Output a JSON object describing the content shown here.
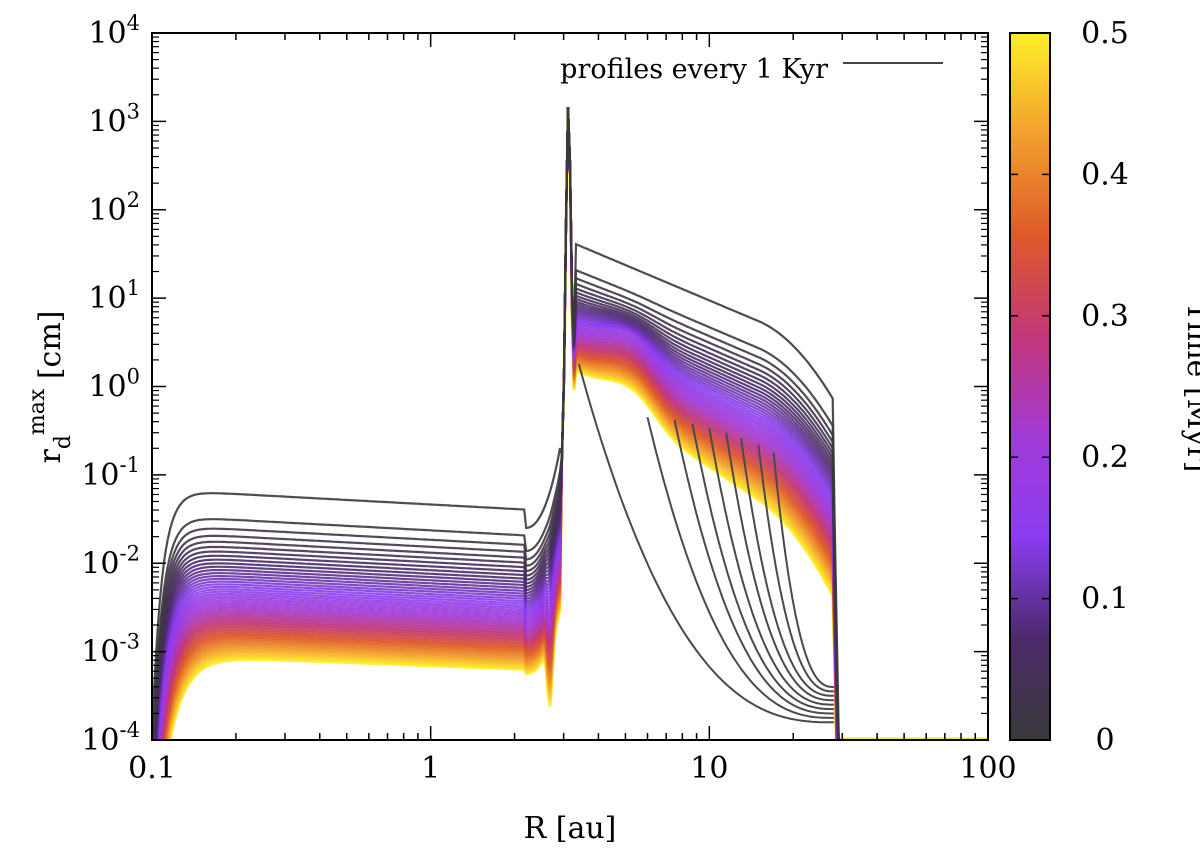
{
  "chart_data": {
    "type": "line",
    "xscale": "log",
    "yscale": "log",
    "xlim": [
      0.1,
      100
    ],
    "ylim": [
      0.0001,
      10000
    ],
    "xlabel": "R [au]",
    "ylabel": {
      "base": "r",
      "sub": "d",
      "sup": "max",
      "unit": " [cm]"
    },
    "x_ticks": [
      {
        "value": 0.1,
        "label": "0.1"
      },
      {
        "value": 1,
        "label": "1"
      },
      {
        "value": 10,
        "label": "10"
      },
      {
        "value": 100,
        "label": "100"
      }
    ],
    "y_ticks": [
      {
        "value": 0.0001,
        "base": "10",
        "exp": "-4"
      },
      {
        "value": 0.001,
        "base": "10",
        "exp": "-3"
      },
      {
        "value": 0.01,
        "base": "10",
        "exp": "-2"
      },
      {
        "value": 0.1,
        "base": "10",
        "exp": "-1"
      },
      {
        "value": 1,
        "base": "10",
        "exp": "0"
      },
      {
        "value": 10,
        "base": "10",
        "exp": "1"
      },
      {
        "value": 100,
        "base": "10",
        "exp": "2"
      },
      {
        "value": 1000,
        "base": "10",
        "exp": "3"
      },
      {
        "value": 10000,
        "base": "10",
        "exp": "4"
      }
    ],
    "legend": {
      "label": "profiles every 1 Kyr",
      "position": "top-right"
    },
    "colorbar": {
      "label": "Time [Myr]",
      "range": [
        0,
        0.5
      ],
      "ticks": [
        "0",
        "0.1",
        "0.2",
        "0.3",
        "0.4",
        "0.5"
      ],
      "colors": [
        "#3a3a3a",
        "#4b2a6a",
        "#8a3cf0",
        "#a23ad6",
        "#c2367a",
        "#de5a2a",
        "#f2a02e",
        "#ffee2a"
      ]
    },
    "early_profiles": {
      "description_time_Myr": [
        0.001,
        0.002,
        0.003,
        0.004,
        0.005,
        0.006,
        0.007,
        0.008,
        0.009
      ],
      "cutoff_R_au": [
        3.4,
        6.0,
        7.5,
        8.7,
        10.0,
        11.5,
        13.0,
        15.0,
        17.0
      ],
      "start_value_cm": [
        1.8,
        0.45,
        0.42,
        0.38,
        0.34,
        0.3,
        0.26,
        0.22,
        0.18
      ]
    },
    "series_samples": [
      {
        "time_Myr": 0.0,
        "points": [
          [
            0.1,
            0.0003
          ],
          [
            0.13,
            0.03
          ],
          [
            0.25,
            0.065
          ],
          [
            1,
            0.045
          ],
          [
            2.2,
            0.03
          ],
          [
            2.6,
            0.05
          ],
          [
            3.0,
            1500
          ],
          [
            3.2,
            30
          ],
          [
            3.5,
            38
          ],
          [
            10,
            12
          ],
          [
            28,
            1.0
          ],
          [
            30,
            0.0001
          ]
        ]
      },
      {
        "time_Myr": 0.1,
        "points": [
          [
            0.1,
            0.0002
          ],
          [
            0.2,
            0.002
          ],
          [
            1,
            0.002
          ],
          [
            2.2,
            0.0012
          ],
          [
            2.7,
            0.01
          ],
          [
            3.0,
            1500
          ],
          [
            3.3,
            3.0
          ],
          [
            5,
            2.0
          ],
          [
            10,
            0.6
          ],
          [
            28,
            0.03
          ],
          [
            30,
            0.0001
          ]
        ]
      },
      {
        "time_Myr": 0.5,
        "points": [
          [
            0.1,
            0.0001
          ],
          [
            0.3,
            0.0008
          ],
          [
            1,
            0.0008
          ],
          [
            2.2,
            0.0005
          ],
          [
            2.7,
            0.003
          ],
          [
            3.0,
            1600
          ],
          [
            3.3,
            1.2
          ],
          [
            5,
            0.6
          ],
          [
            10,
            0.25
          ],
          [
            28,
            0.002
          ],
          [
            30,
            0.0001
          ]
        ]
      }
    ]
  }
}
